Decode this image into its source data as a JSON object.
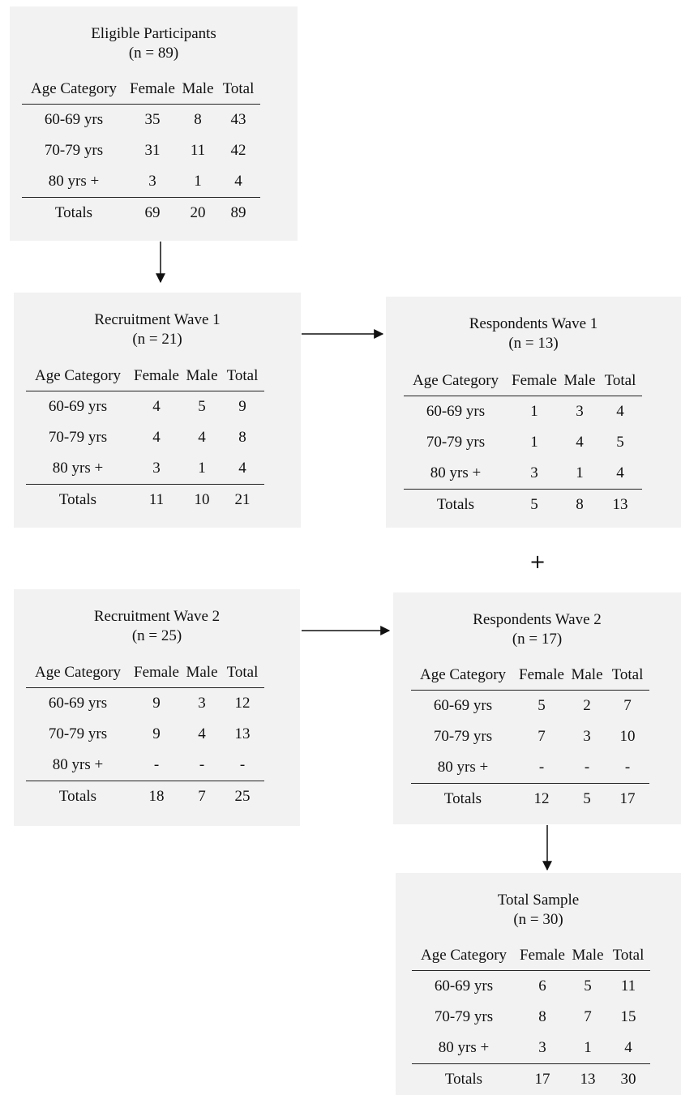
{
  "columns": [
    "Age Category",
    "Female",
    "Male",
    "Total"
  ],
  "plus_label": "+",
  "boxes": {
    "eligible": {
      "title": "Eligible Participants",
      "n": "(n = 89)",
      "rows": [
        [
          "60-69 yrs",
          "35",
          "8",
          "43"
        ],
        [
          "70-79 yrs",
          "31",
          "11",
          "42"
        ],
        [
          "80 yrs +",
          "3",
          "1",
          "4"
        ]
      ],
      "totals": [
        "Totals",
        "69",
        "20",
        "89"
      ]
    },
    "recruit1": {
      "title": "Recruitment Wave 1",
      "n": "(n = 21)",
      "rows": [
        [
          "60-69 yrs",
          "4",
          "5",
          "9"
        ],
        [
          "70-79 yrs",
          "4",
          "4",
          "8"
        ],
        [
          "80 yrs +",
          "3",
          "1",
          "4"
        ]
      ],
      "totals": [
        "Totals",
        "11",
        "10",
        "21"
      ]
    },
    "resp1": {
      "title": "Respondents Wave 1",
      "n": "(n = 13)",
      "rows": [
        [
          "60-69 yrs",
          "1",
          "3",
          "4"
        ],
        [
          "70-79 yrs",
          "1",
          "4",
          "5"
        ],
        [
          "80 yrs +",
          "3",
          "1",
          "4"
        ]
      ],
      "totals": [
        "Totals",
        "5",
        "8",
        "13"
      ]
    },
    "recruit2": {
      "title": "Recruitment Wave 2",
      "n": "(n = 25)",
      "rows": [
        [
          "60-69 yrs",
          "9",
          "3",
          "12"
        ],
        [
          "70-79 yrs",
          "9",
          "4",
          "13"
        ],
        [
          "80 yrs +",
          "-",
          "-",
          "-"
        ]
      ],
      "totals": [
        "Totals",
        "18",
        "7",
        "25"
      ]
    },
    "resp2": {
      "title": "Respondents Wave 2",
      "n": "(n = 17)",
      "rows": [
        [
          "60-69 yrs",
          "5",
          "2",
          "7"
        ],
        [
          "70-79 yrs",
          "7",
          "3",
          "10"
        ],
        [
          "80 yrs +",
          "-",
          "-",
          "-"
        ]
      ],
      "totals": [
        "Totals",
        "12",
        "5",
        "17"
      ]
    },
    "total": {
      "title": "Total Sample",
      "n": "(n = 30)",
      "rows": [
        [
          "60-69 yrs",
          "6",
          "5",
          "11"
        ],
        [
          "70-79 yrs",
          "8",
          "7",
          "15"
        ],
        [
          "80 yrs +",
          "3",
          "1",
          "4"
        ]
      ],
      "totals": [
        "Totals",
        "17",
        "13",
        "30"
      ]
    }
  }
}
